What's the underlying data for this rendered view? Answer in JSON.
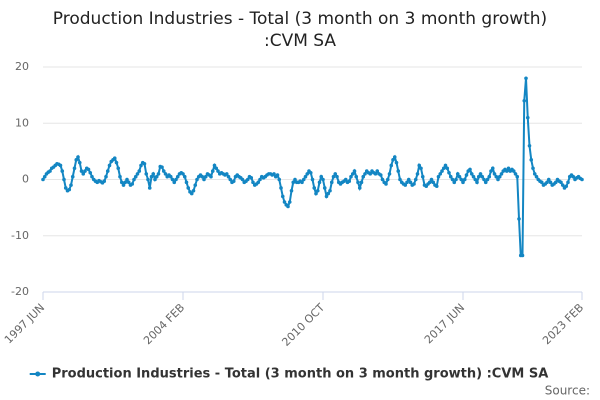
{
  "chart_data": {
    "type": "line",
    "title": [
      "Production Industries - Total (3 month on 3 month growth)",
      ":CVM SA"
    ],
    "source": "Source:",
    "ylim": [
      -20,
      20
    ],
    "yticks": [
      -20,
      -10,
      0,
      10,
      20
    ],
    "grid": true,
    "categories": [
      "1997 JUN",
      null,
      null,
      null,
      null,
      null,
      null,
      null,
      null,
      null,
      null,
      null,
      null,
      null,
      null,
      null,
      null,
      null,
      null,
      null,
      null,
      null,
      null,
      null,
      null,
      null,
      null,
      null,
      null,
      null,
      null,
      null,
      null,
      null,
      null,
      null,
      null,
      null,
      null,
      null,
      null,
      null,
      null,
      null,
      null,
      null,
      null,
      null,
      null,
      null,
      null,
      null,
      null,
      null,
      null,
      null,
      null,
      null,
      null,
      null,
      null,
      null,
      null,
      null,
      null,
      null,
      null,
      null,
      null,
      null,
      null,
      null,
      null,
      null,
      null,
      null,
      null,
      null,
      null,
      null,
      "2004 FEB",
      null,
      null,
      null,
      null,
      null,
      null,
      null,
      null,
      null,
      null,
      null,
      null,
      null,
      null,
      null,
      null,
      null,
      null,
      null,
      null,
      null,
      null,
      null,
      null,
      null,
      null,
      null,
      null,
      null,
      null,
      null,
      null,
      null,
      null,
      null,
      null,
      null,
      null,
      null,
      null,
      null,
      null,
      null,
      null,
      null,
      null,
      null,
      null,
      null,
      null,
      null,
      null,
      null,
      null,
      null,
      null,
      null,
      null,
      null,
      null,
      null,
      null,
      null,
      null,
      null,
      null,
      null,
      null,
      null,
      null,
      null,
      null,
      null,
      null,
      null,
      null,
      null,
      null,
      null,
      "2010 OCT",
      null,
      null,
      null,
      null,
      null,
      null,
      null,
      null,
      null,
      null,
      null,
      null,
      null,
      null,
      null,
      null,
      null,
      null,
      null,
      null,
      null,
      null,
      null,
      null,
      null,
      null,
      null,
      null,
      null,
      null,
      null,
      null,
      null,
      null,
      null,
      null,
      null,
      null,
      null,
      null,
      null,
      null,
      null,
      null,
      null,
      null,
      null,
      null,
      null,
      null,
      null,
      null,
      null,
      null,
      null,
      null,
      null,
      null,
      null,
      null,
      null,
      null,
      null,
      null,
      null,
      null,
      null,
      null,
      null,
      null,
      null,
      null,
      null,
      null,
      null,
      null,
      null,
      null,
      null,
      "2017 JUN",
      null,
      null,
      null,
      null,
      null,
      null,
      null,
      null,
      null,
      null,
      null,
      null,
      null,
      null,
      null,
      null,
      null,
      null,
      null,
      null,
      null,
      null,
      null,
      null,
      null,
      null,
      null,
      null,
      null,
      null,
      null,
      null,
      null,
      null,
      null,
      null,
      null,
      null,
      null,
      null,
      null,
      null,
      null,
      null,
      null,
      null,
      null,
      null,
      null,
      null,
      null,
      null,
      null,
      null,
      null,
      null,
      null,
      null,
      null,
      null,
      null,
      null,
      null,
      null,
      null,
      null,
      null,
      "2023 FEB"
    ],
    "series": [
      {
        "name": "Production Industries - Total (3 month on 3 month growth) :CVM SA",
        "color": "#1386c3",
        "values": [
          0,
          0.5,
          1,
          1.3,
          1.5,
          2,
          2.2,
          2.5,
          2.8,
          2.7,
          2.5,
          1.5,
          0,
          -1.5,
          -2,
          -1.8,
          -1,
          0.5,
          2,
          3.5,
          4,
          3,
          1.5,
          1,
          1.5,
          2,
          1.8,
          1.2,
          0.5,
          0,
          -0.3,
          -0.5,
          -0.2,
          -0.4,
          -0.6,
          -0.3,
          0.5,
          1.5,
          2.5,
          3.2,
          3.5,
          3.8,
          3,
          2,
          0.5,
          -0.5,
          -1,
          -0.5,
          0,
          -0.5,
          -1,
          -0.8,
          0,
          0.5,
          1,
          1.5,
          2.5,
          3,
          2.8,
          1,
          0,
          -1.5,
          0.5,
          1,
          0,
          0.5,
          1,
          2.3,
          2.2,
          1.5,
          1,
          0.5,
          0.8,
          0.5,
          0,
          -0.5,
          0,
          0.5,
          1,
          1.2,
          1,
          0.5,
          -0.5,
          -1.5,
          -2.2,
          -2.5,
          -2,
          -1,
          0,
          0.5,
          0.8,
          0.5,
          0,
          0.5,
          1,
          0.8,
          0.5,
          1.5,
          2.5,
          2,
          1.5,
          1,
          1.2,
          1,
          0.8,
          1,
          0.5,
          0,
          -0.5,
          -0.3,
          0.5,
          0.8,
          0.5,
          0.3,
          0,
          -0.5,
          -0.3,
          0,
          0.5,
          0.3,
          -0.5,
          -1,
          -0.8,
          -0.5,
          0,
          0.5,
          0.3,
          0.5,
          0.8,
          1,
          1,
          0.8,
          1,
          0.5,
          0.8,
          0,
          -1.5,
          -3,
          -4,
          -4.5,
          -4.8,
          -4,
          -2,
          -0.5,
          0,
          -0.5,
          -0.5,
          -0.3,
          -0.5,
          0,
          0.5,
          1,
          1.5,
          1.2,
          0,
          -1.5,
          -2.5,
          -2,
          -0.5,
          0.5,
          0,
          -1.5,
          -3,
          -2.5,
          -2,
          -0.5,
          0.5,
          1,
          0.5,
          -0.5,
          -0.8,
          -0.5,
          -0.3,
          0,
          -0.5,
          -0.3,
          0.5,
          1,
          1.5,
          0.5,
          -0.5,
          -1.5,
          -0.5,
          0.5,
          1,
          1.5,
          1.2,
          1,
          1.5,
          1.2,
          1,
          1.5,
          1,
          0.8,
          0,
          -0.5,
          -0.8,
          0,
          1,
          2.5,
          3.5,
          4,
          3,
          1.5,
          0,
          -0.5,
          -0.8,
          -1,
          -0.5,
          0,
          -0.5,
          -1,
          -0.8,
          0,
          1,
          2.5,
          2,
          0.5,
          -1,
          -1.2,
          -0.8,
          -0.5,
          0,
          -0.5,
          -1,
          -1.2,
          0.5,
          1,
          1.5,
          2,
          2.5,
          2,
          1.2,
          0.5,
          0,
          -0.5,
          0,
          1,
          0.5,
          0,
          -0.5,
          0,
          0.8,
          1.5,
          1.8,
          1,
          0.5,
          0,
          -0.5,
          0.5,
          1,
          0.5,
          0,
          -0.5,
          0,
          0.5,
          1.5,
          2,
          1,
          0.5,
          0,
          0.5,
          1,
          1.5,
          1.8,
          1.5,
          2,
          1.5,
          1.8,
          1.5,
          1,
          0.5,
          -7,
          -13.5,
          -13.5,
          14,
          18,
          11,
          6,
          3.5,
          2,
          1,
          0.5,
          0,
          -0.3,
          -0.5,
          -1,
          -0.8,
          -0.5,
          0,
          -0.5,
          -1,
          -0.8,
          -0.5,
          0,
          -0.3,
          -0.5,
          -1,
          -1.5,
          -1.2,
          -0.5,
          0.5,
          0.8,
          0.5,
          0,
          0.3,
          0.5,
          0.2,
          0
        ]
      }
    ]
  }
}
